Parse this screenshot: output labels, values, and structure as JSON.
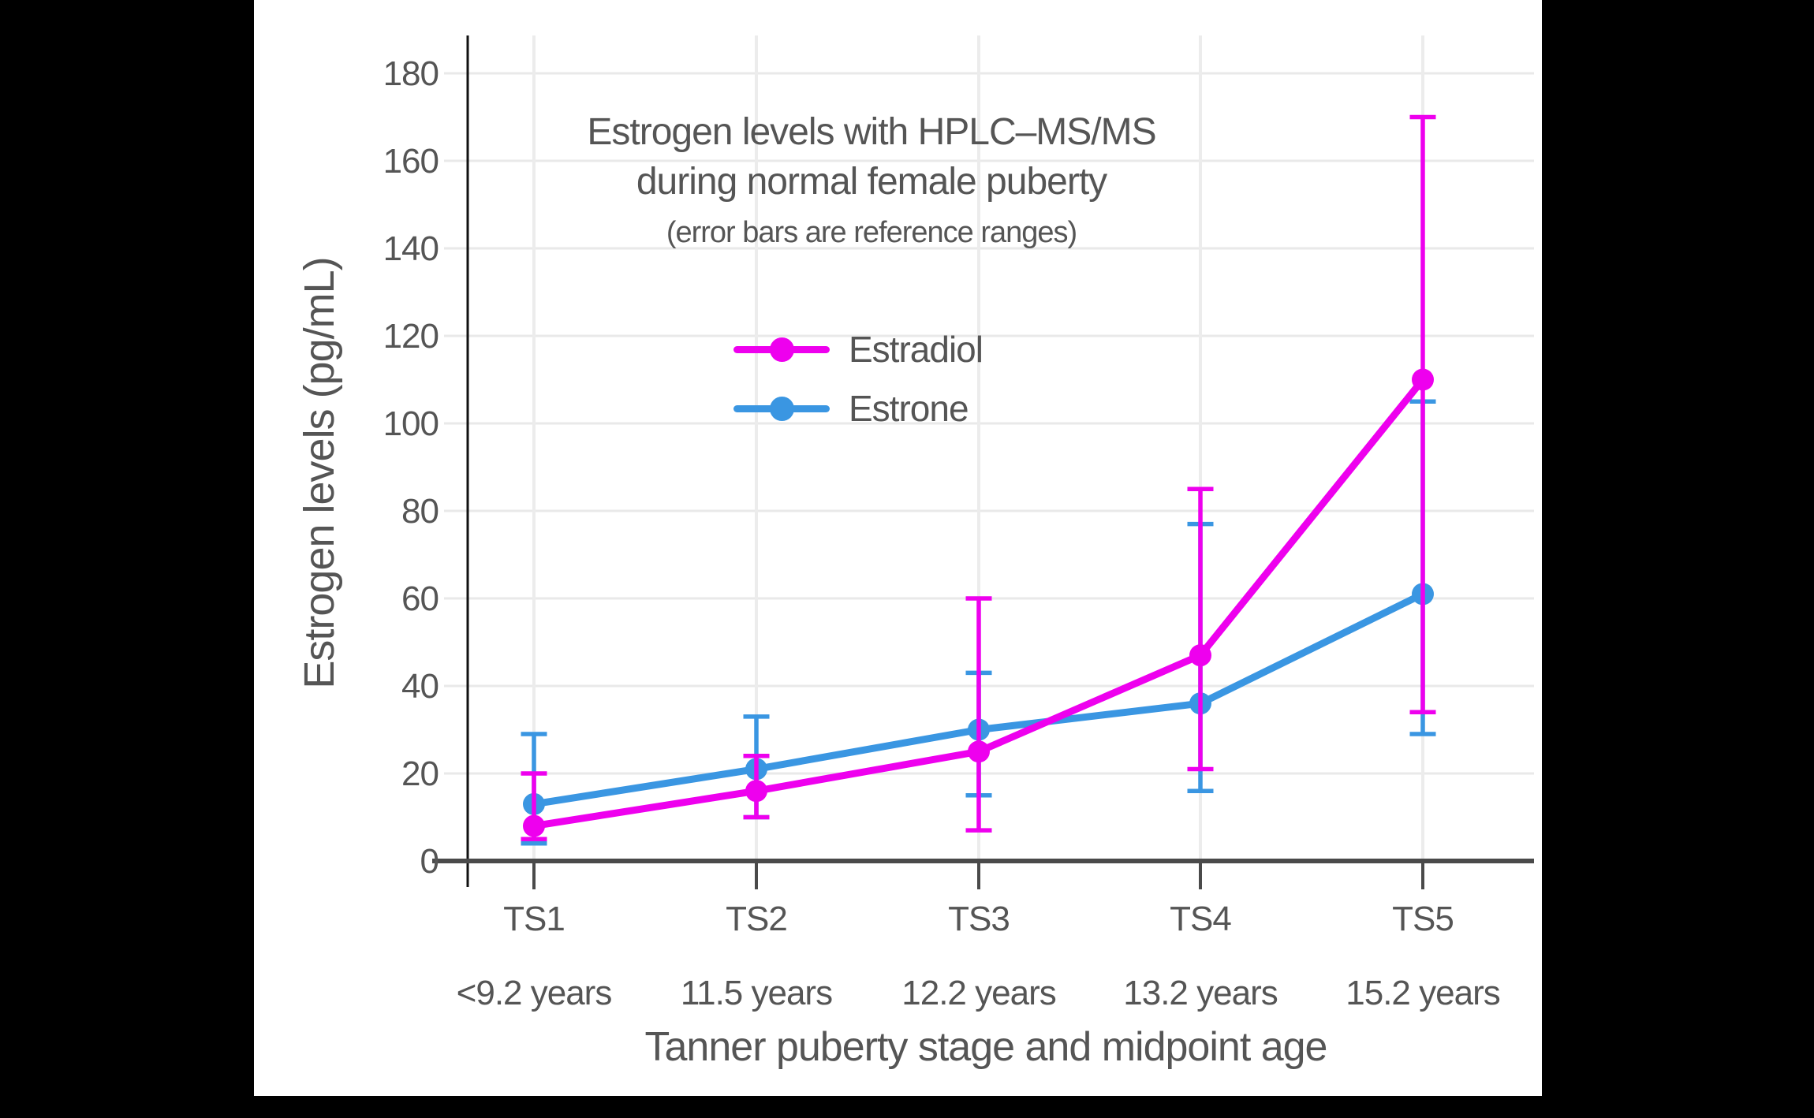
{
  "title": {
    "line1": "Estrogen levels with HPLC–MS/MS",
    "line2": "during normal female puberty",
    "subtitle": "(error bars are reference ranges)"
  },
  "colors": {
    "frame": "#000000",
    "panel": "#ffffff",
    "text": "#555555",
    "grid": "#e9e9e9",
    "grid_vertical": "#ececec",
    "axis": "#4a4a4a",
    "y_axis_line": "#111111",
    "estradiol": "#ee00ee",
    "estrone": "#3a96e2"
  },
  "chart_data": {
    "type": "line",
    "title": "Estrogen levels with HPLC–MS/MS during normal female puberty",
    "subtitle": "(error bars are reference ranges)",
    "xlabel": "Tanner puberty stage and midpoint age",
    "ylabel": "Estrogen levels (pg/mL)",
    "ylim": [
      0,
      180
    ],
    "y_ticks": [
      0,
      20,
      40,
      60,
      80,
      100,
      120,
      140,
      160,
      180
    ],
    "grid": true,
    "legend_position": "upper-center-inside",
    "categories": [
      "TS1",
      "TS2",
      "TS3",
      "TS4",
      "TS5"
    ],
    "category_sublabels": [
      "<9.2 years",
      "11.5 years",
      "12.2 years",
      "13.2 years",
      "15.2 years"
    ],
    "series": [
      {
        "name": "Estradiol",
        "color": "#ee00ee",
        "values": [
          8,
          16,
          25,
          47,
          110
        ],
        "error_low": [
          5,
          10,
          7,
          21,
          34
        ],
        "error_high": [
          20,
          24,
          60,
          85,
          170
        ]
      },
      {
        "name": "Estrone",
        "color": "#3a96e2",
        "values": [
          13,
          21,
          30,
          36,
          61
        ],
        "error_low": [
          4,
          10,
          15,
          16,
          29
        ],
        "error_high": [
          29,
          33,
          43,
          77,
          105
        ]
      }
    ]
  }
}
